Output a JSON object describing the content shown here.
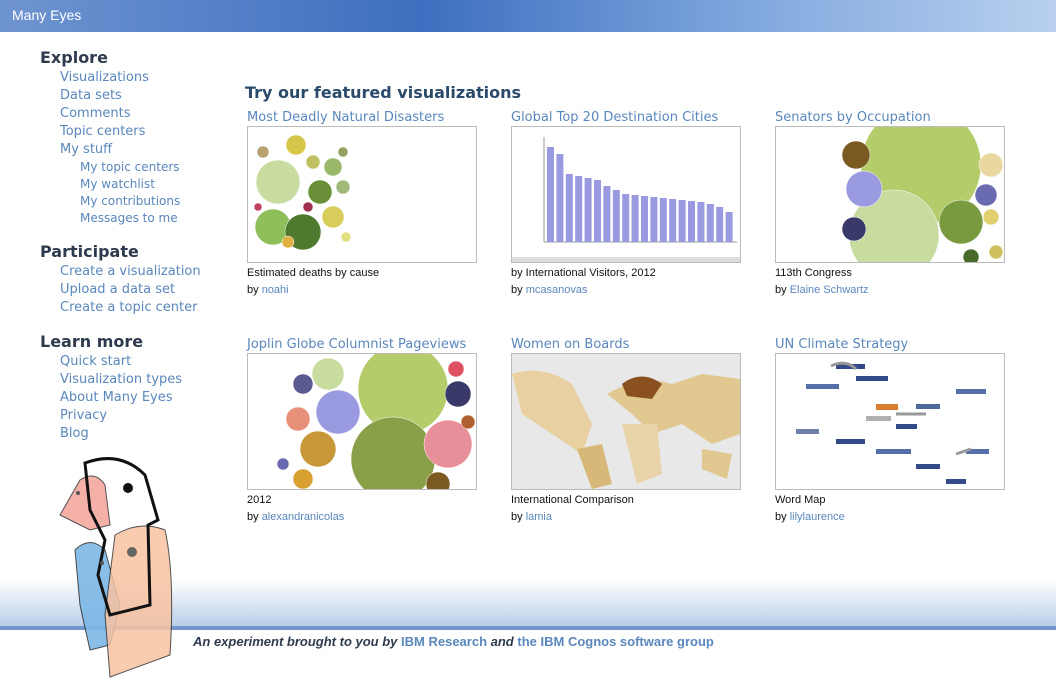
{
  "header": {
    "title": "Many Eyes"
  },
  "sidebar": {
    "sections": [
      {
        "title": "Explore",
        "links": [
          "Visualizations",
          "Data sets",
          "Comments",
          "Topic centers",
          "My stuff"
        ],
        "sublinks": [
          "My topic centers",
          "My watchlist",
          "My contributions",
          "Messages to me"
        ]
      },
      {
        "title": "Participate",
        "links": [
          "Create a visualization",
          "Upload a data set",
          "Create a topic center"
        ]
      },
      {
        "title": "Learn more",
        "links": [
          "Quick start",
          "Visualization types",
          "About Many Eyes",
          "Privacy",
          "Blog"
        ]
      }
    ]
  },
  "main": {
    "heading": "Try our featured visualizations",
    "by": "by",
    "items": [
      {
        "title": "Most Deadly Natural Disasters",
        "caption": "Estimated deaths by cause",
        "author": "noahi"
      },
      {
        "title": "Global Top 20 Destination Cities",
        "caption": "by International Visitors, 2012",
        "author": "mcasanovas"
      },
      {
        "title": "Senators by Occupation",
        "caption": "113th Congress",
        "author": "Elaine Schwartz"
      },
      {
        "title": "Joplin Globe Columnist Pageviews",
        "caption": "2012",
        "author": "alexandranicolas"
      },
      {
        "title": "Women on Boards",
        "caption": "International Comparison",
        "author": "lamia"
      },
      {
        "title": "UN Climate Strategy",
        "caption": "Word Map",
        "author": "lilylaurence"
      }
    ]
  },
  "footer": {
    "lead": "An experiment brought to you by",
    "link1": "IBM Research",
    "mid": "and",
    "link2": "the IBM Cognos software group"
  }
}
